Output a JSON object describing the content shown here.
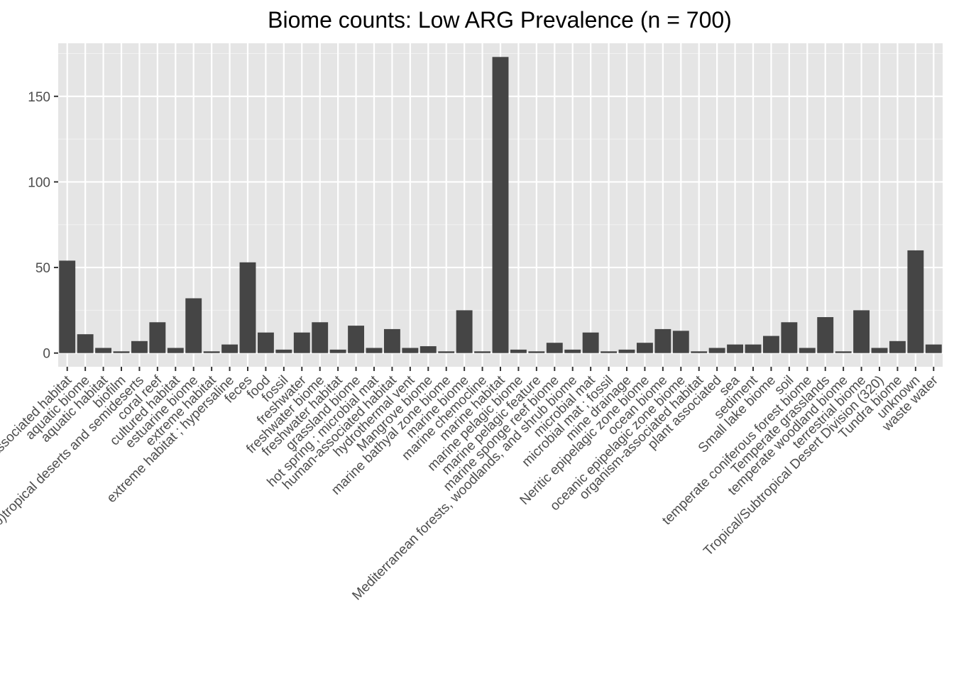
{
  "chart_data": {
    "type": "bar",
    "title": "Biome counts: Low ARG Prevalence (n = 700)",
    "xlabel": "",
    "ylabel": "",
    "ylim": [
      -8,
      181
    ],
    "yticks": [
      0,
      50,
      100,
      150
    ],
    "grid": true,
    "bar_color": "#454545",
    "panel_color": "#e5e5e5",
    "categories": [
      "animal-associated habitat",
      "aquatic biome",
      "aquatic habitat",
      "biofilm",
      "(sub)tropical deserts and semideserts",
      "coral reef",
      "cultured habitat",
      "estuarine biome",
      "extreme habitat",
      "extreme habitat ; hypersaline",
      "feces",
      "food",
      "fossil",
      "freshwater",
      "freshwater biome",
      "freshwater habitat",
      "grassland biome",
      "hot spring ; microbial mat",
      "human-associated habitat",
      "hydrothermal vent",
      "Mangrove biome",
      "marine bathyal zone biome",
      "marine biome",
      "marine chemocline",
      "marine habitat",
      "marine pelagic biome",
      "marine pelagic feature",
      "marine sponge reef biome",
      "Mediterranean forests, woodlands, and shrub biome",
      "microbial mat",
      "microbial mat ; fossil",
      "mine drainage",
      "Neritic epipelagic zone biome",
      "ocean biome",
      "oceanic epipelagic zone biome",
      "organism-associated habitat",
      "plant associated",
      "sea",
      "sediment",
      "Small lake biome",
      "soil",
      "temperate coniferous forest biome",
      "Temperate grasslands",
      "temperate woodland biome",
      "terrestrial biome",
      "Tropical/Subtropical Desert Division (320)",
      "Tundra biome",
      "unknown",
      "waste water"
    ],
    "values": [
      54,
      11,
      3,
      1,
      7,
      18,
      3,
      32,
      1,
      5,
      53,
      12,
      2,
      12,
      18,
      2,
      16,
      3,
      14,
      3,
      4,
      1,
      25,
      1,
      173,
      2,
      1,
      6,
      2,
      12,
      1,
      2,
      6,
      14,
      13,
      1,
      3,
      5,
      5,
      10,
      18,
      3,
      21,
      1,
      25,
      3,
      7,
      60,
      5
    ]
  }
}
